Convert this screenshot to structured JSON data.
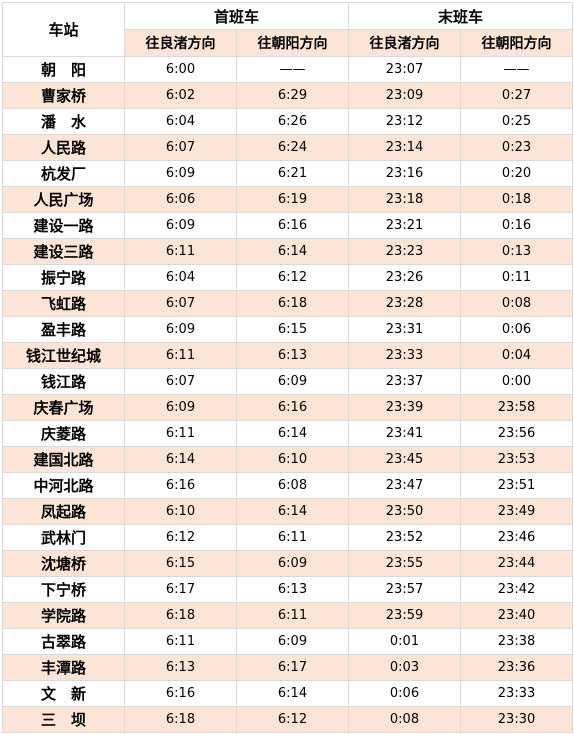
{
  "table": {
    "header": {
      "station": "车站",
      "first_train": "首班车",
      "last_train": "末班车",
      "dir_liangzhu": "往良渚方向",
      "dir_chaoyang": "往朝阳方向"
    },
    "rows": [
      {
        "station": "朝　阳",
        "first_lz": "6:00",
        "first_cy": "——",
        "last_lz": "23:07",
        "last_cy": "——"
      },
      {
        "station": "曹家桥",
        "first_lz": "6:02",
        "first_cy": "6:29",
        "last_lz": "23:09",
        "last_cy": "0:27"
      },
      {
        "station": "潘　水",
        "first_lz": "6:04",
        "first_cy": "6:26",
        "last_lz": "23:12",
        "last_cy": "0:25"
      },
      {
        "station": "人民路",
        "first_lz": "6:07",
        "first_cy": "6:24",
        "last_lz": "23:14",
        "last_cy": "0:23"
      },
      {
        "station": "杭发厂",
        "first_lz": "6:09",
        "first_cy": "6:21",
        "last_lz": "23:16",
        "last_cy": "0:20"
      },
      {
        "station": "人民广场",
        "first_lz": "6:06",
        "first_cy": "6:19",
        "last_lz": "23:18",
        "last_cy": "0:18"
      },
      {
        "station": "建设一路",
        "first_lz": "6:09",
        "first_cy": "6:16",
        "last_lz": "23:21",
        "last_cy": "0:16"
      },
      {
        "station": "建设三路",
        "first_lz": "6:11",
        "first_cy": "6:14",
        "last_lz": "23:23",
        "last_cy": "0:13"
      },
      {
        "station": "振宁路",
        "first_lz": "6:04",
        "first_cy": "6:12",
        "last_lz": "23:26",
        "last_cy": "0:11"
      },
      {
        "station": "飞虹路",
        "first_lz": "6:07",
        "first_cy": "6:18",
        "last_lz": "23:28",
        "last_cy": "0:08"
      },
      {
        "station": "盈丰路",
        "first_lz": "6:09",
        "first_cy": "6:15",
        "last_lz": "23:31",
        "last_cy": "0:06"
      },
      {
        "station": "钱江世纪城",
        "first_lz": "6:11",
        "first_cy": "6:13",
        "last_lz": "23:33",
        "last_cy": "0:04"
      },
      {
        "station": "钱江路",
        "first_lz": "6:07",
        "first_cy": "6:09",
        "last_lz": "23:37",
        "last_cy": "0:00"
      },
      {
        "station": "庆春广场",
        "first_lz": "6:09",
        "first_cy": "6:16",
        "last_lz": "23:39",
        "last_cy": "23:58"
      },
      {
        "station": "庆菱路",
        "first_lz": "6:11",
        "first_cy": "6:14",
        "last_lz": "23:41",
        "last_cy": "23:56"
      },
      {
        "station": "建国北路",
        "first_lz": "6:14",
        "first_cy": "6:10",
        "last_lz": "23:45",
        "last_cy": "23:53"
      },
      {
        "station": "中河北路",
        "first_lz": "6:16",
        "first_cy": "6:08",
        "last_lz": "23:47",
        "last_cy": "23:51"
      },
      {
        "station": "凤起路",
        "first_lz": "6:10",
        "first_cy": "6:14",
        "last_lz": "23:50",
        "last_cy": "23:49"
      },
      {
        "station": "武林门",
        "first_lz": "6:12",
        "first_cy": "6:11",
        "last_lz": "23:52",
        "last_cy": "23:46"
      },
      {
        "station": "沈塘桥",
        "first_lz": "6:15",
        "first_cy": "6:09",
        "last_lz": "23:55",
        "last_cy": "23:44"
      },
      {
        "station": "下宁桥",
        "first_lz": "6:17",
        "first_cy": "6:13",
        "last_lz": "23:57",
        "last_cy": "23:42"
      },
      {
        "station": "学院路",
        "first_lz": "6:18",
        "first_cy": "6:11",
        "last_lz": "23:59",
        "last_cy": "23:40"
      },
      {
        "station": "古翠路",
        "first_lz": "6:11",
        "first_cy": "6:09",
        "last_lz": "0:01",
        "last_cy": "23:38"
      },
      {
        "station": "丰潭路",
        "first_lz": "6:13",
        "first_cy": "6:17",
        "last_lz": "0:03",
        "last_cy": "23:36"
      },
      {
        "station": "文　新",
        "first_lz": "6:16",
        "first_cy": "6:14",
        "last_lz": "0:06",
        "last_cy": "23:33"
      },
      {
        "station": "三　坝",
        "first_lz": "6:18",
        "first_cy": "6:12",
        "last_lz": "0:08",
        "last_cy": "23:30"
      }
    ]
  },
  "colors": {
    "band": "#fce4d6",
    "border": "#d9d9d9"
  }
}
